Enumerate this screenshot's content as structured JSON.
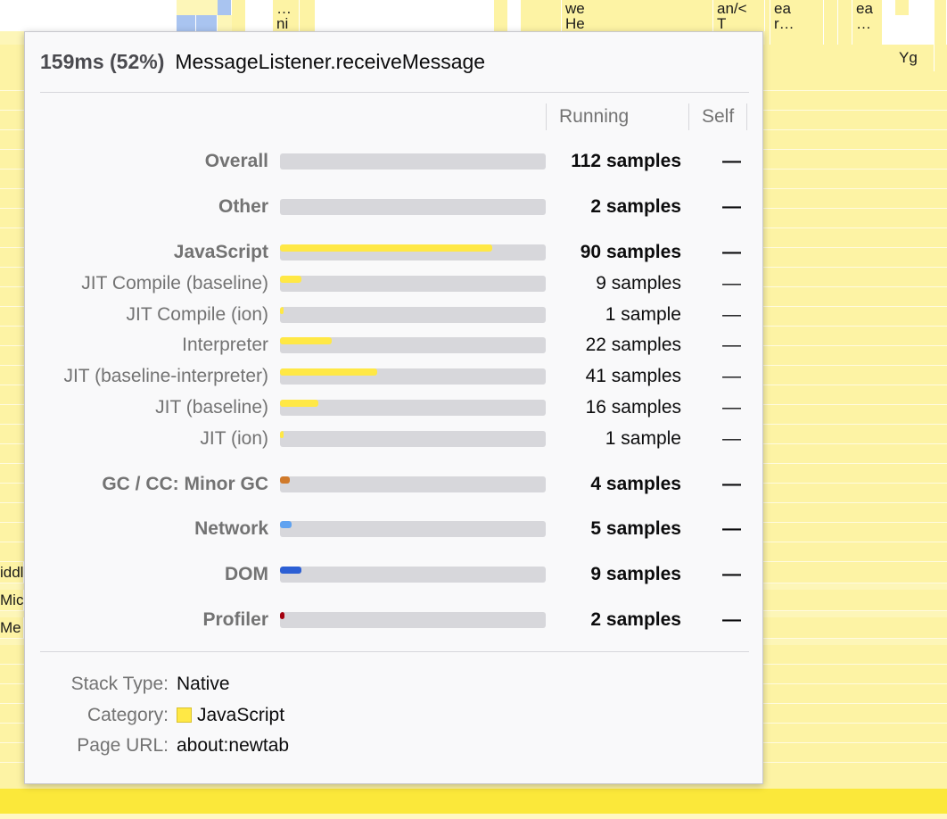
{
  "flame": {
    "top_cells": [
      "…",
      "ni",
      "we",
      "He",
      "an/<",
      "T",
      "ea",
      "r…",
      "ea",
      "…",
      "Yg"
    ],
    "left_fragments": [
      "iddl",
      "Mic",
      "Me"
    ]
  },
  "tooltip": {
    "duration": "159ms (52%)",
    "function_name": "MessageListener.receiveMessage",
    "columns": {
      "running": "Running",
      "self": "Self"
    },
    "categories": [
      {
        "label": "Overall",
        "samples": "112 samples",
        "self": "—",
        "bold": true,
        "fraction": 0.0,
        "color": "#ffe845"
      },
      {
        "label": "Other",
        "samples": "2 samples",
        "self": "—",
        "bold": true,
        "fraction": 0.0,
        "color": "#b1b1b3"
      },
      {
        "label": "JavaScript",
        "samples": "90 samples",
        "self": "—",
        "bold": true,
        "fraction": 0.8,
        "color": "#ffe845"
      },
      {
        "label": "JIT Compile (baseline)",
        "samples": "9 samples",
        "self": "—",
        "bold": false,
        "fraction": 0.08,
        "color": "#ffe845"
      },
      {
        "label": "JIT Compile (ion)",
        "samples": "1 sample",
        "self": "—",
        "bold": false,
        "fraction": 0.01,
        "color": "#ffe845"
      },
      {
        "label": "Interpreter",
        "samples": "22 samples",
        "self": "—",
        "bold": false,
        "fraction": 0.196,
        "color": "#ffe845"
      },
      {
        "label": "JIT (baseline-interpreter)",
        "samples": "41 samples",
        "self": "—",
        "bold": false,
        "fraction": 0.366,
        "color": "#ffe845"
      },
      {
        "label": "JIT (baseline)",
        "samples": "16 samples",
        "self": "—",
        "bold": false,
        "fraction": 0.143,
        "color": "#ffe845"
      },
      {
        "label": "JIT (ion)",
        "samples": "1 sample",
        "self": "—",
        "bold": false,
        "fraction": 0.01,
        "color": "#ffe845"
      },
      {
        "label": "GC / CC: Minor GC",
        "samples": "4 samples",
        "self": "—",
        "bold": true,
        "fraction": 0.036,
        "color": "#d07a2b"
      },
      {
        "label": "Network",
        "samples": "5 samples",
        "self": "—",
        "bold": true,
        "fraction": 0.045,
        "color": "#5fa2f0"
      },
      {
        "label": "DOM",
        "samples": "9 samples",
        "self": "—",
        "bold": true,
        "fraction": 0.08,
        "color": "#2c5fd4"
      },
      {
        "label": "Profiler",
        "samples": "2 samples",
        "self": "—",
        "bold": true,
        "fraction": 0.018,
        "color": "#a4000f"
      }
    ],
    "details": {
      "stack_type_label": "Stack Type:",
      "stack_type_value": "Native",
      "category_label": "Category:",
      "category_value": "JavaScript",
      "category_color": "#ffe845",
      "page_url_label": "Page URL:",
      "page_url_value": "about:newtab"
    }
  }
}
